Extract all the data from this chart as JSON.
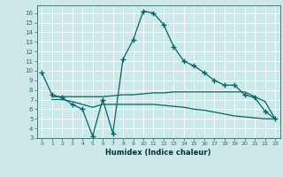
{
  "xlabel": "Humidex (Indice chaleur)",
  "background_color": "#cde8e8",
  "line_color": "#006666",
  "xlim": [
    -0.5,
    23.5
  ],
  "ylim": [
    3,
    16.8
  ],
  "yticks": [
    3,
    4,
    5,
    6,
    7,
    8,
    9,
    10,
    11,
    12,
    13,
    14,
    15,
    16
  ],
  "xticks": [
    0,
    1,
    2,
    3,
    4,
    5,
    6,
    7,
    8,
    9,
    10,
    11,
    12,
    13,
    14,
    15,
    16,
    17,
    18,
    19,
    20,
    21,
    22,
    23
  ],
  "line1_x": [
    0,
    1,
    2,
    3,
    4,
    5,
    6,
    7,
    8,
    9,
    10,
    11,
    12,
    13,
    14,
    15,
    16,
    17,
    18,
    19,
    20,
    21,
    22,
    23
  ],
  "line1_y": [
    9.8,
    7.5,
    7.2,
    6.5,
    6.0,
    3.2,
    7.0,
    3.5,
    11.2,
    13.2,
    16.2,
    16.0,
    14.8,
    12.5,
    11.0,
    10.5,
    9.8,
    9.0,
    8.5,
    8.5,
    7.5,
    7.2,
    5.8,
    5.0
  ],
  "line2_x": [
    1,
    2,
    3,
    4,
    5,
    6,
    7,
    8,
    9,
    10,
    11,
    12,
    13,
    14,
    15,
    16,
    17,
    18,
    19,
    20,
    21,
    22,
    23
  ],
  "line2_y": [
    7.3,
    7.3,
    7.3,
    7.3,
    7.3,
    7.3,
    7.4,
    7.5,
    7.5,
    7.6,
    7.7,
    7.7,
    7.8,
    7.8,
    7.8,
    7.8,
    7.8,
    7.8,
    7.8,
    7.8,
    7.3,
    6.8,
    5.0
  ],
  "line3_x": [
    1,
    2,
    3,
    4,
    5,
    6,
    7,
    8,
    9,
    10,
    11,
    12,
    13,
    14,
    15,
    16,
    17,
    18,
    19,
    20,
    21,
    22,
    23
  ],
  "line3_y": [
    7.0,
    7.0,
    6.8,
    6.5,
    6.2,
    6.5,
    6.5,
    6.5,
    6.5,
    6.5,
    6.5,
    6.4,
    6.3,
    6.2,
    6.0,
    5.9,
    5.7,
    5.5,
    5.3,
    5.2,
    5.1,
    5.0,
    5.0
  ]
}
